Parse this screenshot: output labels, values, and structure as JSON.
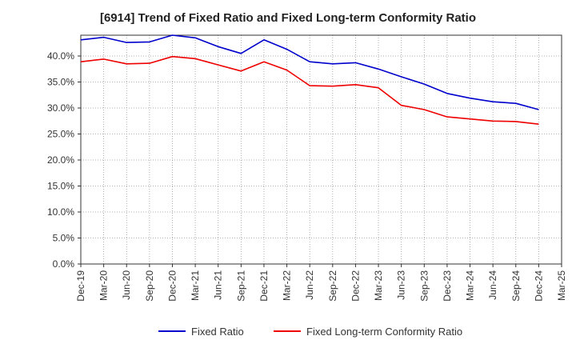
{
  "chart_data": {
    "type": "line",
    "title": "[6914]  Trend of Fixed Ratio and Fixed Long-term Conformity Ratio",
    "xlabel": "",
    "ylabel": "",
    "x_ticks": [
      "Dec-19",
      "Mar-20",
      "Jun-20",
      "Sep-20",
      "Dec-20",
      "Mar-21",
      "Jun-21",
      "Sep-21",
      "Dec-21",
      "Mar-22",
      "Jun-22",
      "Sep-22",
      "Dec-22",
      "Mar-23",
      "Jun-23",
      "Sep-23",
      "Dec-23",
      "Mar-24",
      "Jun-24",
      "Sep-24",
      "Dec-24",
      "Mar-25"
    ],
    "x": [
      "Dec-19",
      "Mar-20",
      "Jun-20",
      "Sep-20",
      "Dec-20",
      "Mar-21",
      "Jun-21",
      "Sep-21",
      "Dec-21",
      "Mar-22",
      "Jun-22",
      "Sep-22",
      "Dec-22",
      "Mar-23",
      "Jun-23",
      "Sep-23",
      "Dec-23",
      "Mar-24",
      "Jun-24",
      "Sep-24",
      "Dec-24"
    ],
    "y_ticks": [
      "0.0%",
      "5.0%",
      "10.0%",
      "15.0%",
      "20.0%",
      "25.0%",
      "30.0%",
      "35.0%",
      "40.0%"
    ],
    "ylim": [
      0,
      44
    ],
    "grid": true,
    "legend_position": "bottom",
    "series": [
      {
        "name": "Fixed Ratio",
        "color": "#0000cc",
        "values": [
          43.1,
          43.6,
          42.6,
          42.7,
          44.0,
          43.5,
          41.8,
          40.5,
          43.1,
          41.3,
          38.9,
          38.5,
          38.7,
          37.5,
          36.0,
          34.6,
          32.8,
          31.9,
          31.2,
          30.9,
          29.7
        ]
      },
      {
        "name": "Fixed Long-term Conformity Ratio",
        "color": "#ee0000",
        "values": [
          38.9,
          39.4,
          38.5,
          38.6,
          39.9,
          39.5,
          38.3,
          37.1,
          38.9,
          37.3,
          34.3,
          34.2,
          34.5,
          33.9,
          30.5,
          29.7,
          28.3,
          27.9,
          27.5,
          27.4,
          26.9
        ]
      }
    ]
  }
}
